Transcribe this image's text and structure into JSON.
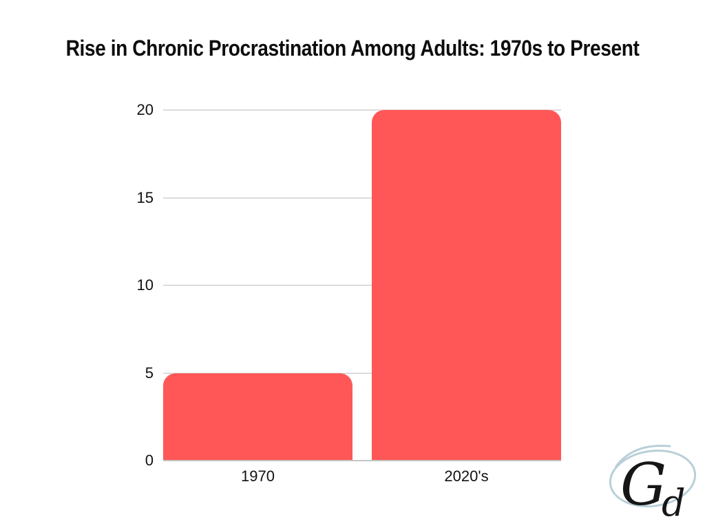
{
  "title": "Rise in Chronic Procrastination Among Adults: 1970s to Present",
  "chart_data": {
    "type": "bar",
    "categories": [
      "1970",
      "2020's"
    ],
    "values": [
      5,
      20
    ],
    "title": "Rise in Chronic Procrastination Among Adults: 1970s to Present",
    "xlabel": "",
    "ylabel": "",
    "ylim": [
      0,
      20
    ],
    "yticks": [
      0,
      5,
      10,
      15,
      20
    ],
    "grid": true,
    "legend": false,
    "bar_color": "#ff5757",
    "gridline_color": "#dcdcdc",
    "axis_line_color": "#c6c6c6",
    "label_color": "#111111",
    "title_color": "#0d0d0d"
  },
  "logo": {
    "monogram": "Gd",
    "letter_g": "G",
    "letter_d": "d",
    "ellipse_color": "#b9cfd8",
    "ink_color": "#161616"
  }
}
